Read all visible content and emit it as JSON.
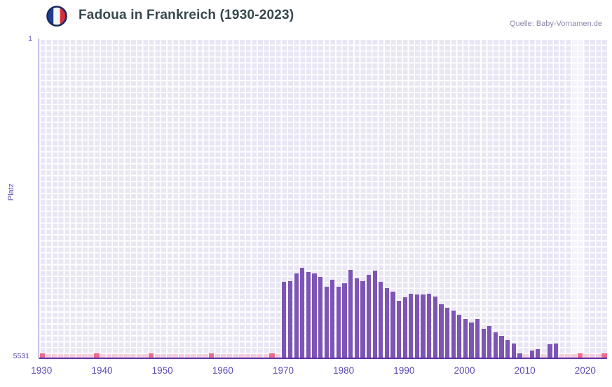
{
  "header": {
    "title": "Fadoua in Frankreich (1930-2023)",
    "source": "Quelle: Baby-Vornamen.de",
    "flag_icon": "france-flag-icon"
  },
  "chart_data": {
    "type": "bar",
    "title": "Fadoua in Frankreich (1930-2023)",
    "ylabel": "Platz",
    "y_top_label": "1",
    "y_bottom_label": "5531",
    "ylim": [
      1,
      5531
    ],
    "y_inverted": true,
    "x_range": [
      1930,
      2023
    ],
    "x_ticks": [
      "1930",
      "1940",
      "1950",
      "1960",
      "1970",
      "1980",
      "1990",
      "2000",
      "2010",
      "2020"
    ],
    "grid": true,
    "bar_color": "#7d55b5",
    "background_color": "#e9e6f4",
    "axis_color": "#6231a8",
    "tick_label_color": "#5f4bb6",
    "unranked_color": "#f4cede",
    "unranked_dark_color": "#ec6b8b",
    "bars": {
      "years": [
        1970,
        1971,
        1972,
        1973,
        1974,
        1975,
        1976,
        1977,
        1978,
        1979,
        1980,
        1981,
        1982,
        1983,
        1984,
        1985,
        1986,
        1987,
        1988,
        1989,
        1990,
        1991,
        1992,
        1993,
        1994,
        1995,
        1996,
        1997,
        1998,
        1999,
        2000,
        2001,
        2002,
        2003,
        2004,
        2005,
        2006,
        2007,
        2008,
        2009,
        2011,
        2012,
        2014,
        2015
      ],
      "ranks": [
        4230,
        4220,
        4090,
        3990,
        4060,
        4090,
        4150,
        4310,
        4190,
        4310,
        4250,
        4020,
        4170,
        4220,
        4110,
        4030,
        4230,
        4340,
        4400,
        4560,
        4490,
        4440,
        4450,
        4450,
        4440,
        4480,
        4620,
        4680,
        4720,
        4800,
        4870,
        4930,
        4870,
        5040,
        4990,
        5100,
        5160,
        5230,
        5290,
        5460,
        5410,
        5390,
        5310,
        5300
      ]
    },
    "unranked": {
      "years": [
        1930,
        1931,
        1932,
        1933,
        1934,
        1935,
        1936,
        1937,
        1938,
        1939,
        1940,
        1941,
        1942,
        1943,
        1944,
        1945,
        1946,
        1947,
        1948,
        1949,
        1950,
        1951,
        1952,
        1953,
        1954,
        1955,
        1956,
        1957,
        1958,
        1959,
        1960,
        1961,
        1962,
        1963,
        1964,
        1965,
        1966,
        1967,
        1968,
        1969,
        2010,
        2013,
        2016,
        2017,
        2018,
        2019,
        2020,
        2021,
        2022,
        2023
      ],
      "dark": [
        1930,
        1939,
        1948,
        1958,
        1968,
        2019,
        2023
      ]
    },
    "highlight_band": {
      "from": 2018,
      "to": 2019
    }
  }
}
